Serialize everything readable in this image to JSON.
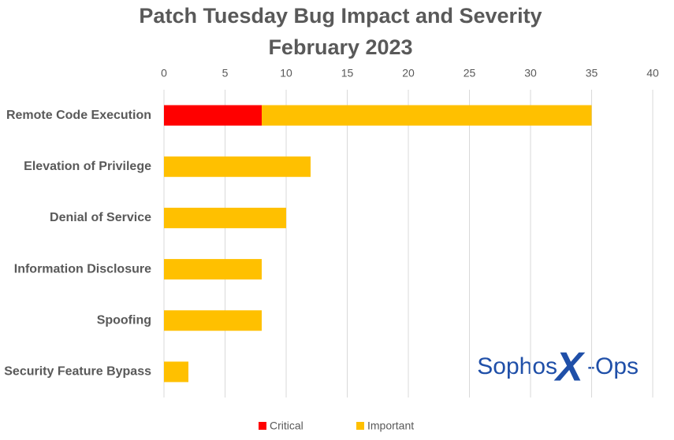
{
  "chart_data": {
    "type": "stacked-barh",
    "title": "Patch Tuesday Bug Impact and Severity",
    "subtitle": "February 2023",
    "categories": [
      "Remote Code Execution",
      "Elevation of Privilege",
      "Denial of Service",
      "Information Disclosure",
      "Spoofing",
      "Security Feature Bypass"
    ],
    "series": [
      {
        "name": "Critical",
        "color": "#ff0000",
        "values": [
          8,
          0,
          0,
          0,
          0,
          0
        ]
      },
      {
        "name": "Important",
        "color": "#ffc000",
        "values": [
          27,
          12,
          10,
          8,
          8,
          2
        ]
      }
    ],
    "xlim": [
      0,
      40
    ],
    "xticks": [
      0,
      5,
      10,
      15,
      20,
      25,
      30,
      35,
      40
    ],
    "grid": true,
    "legend": "bottom",
    "annotations": [
      "Sophos",
      "X",
      "-Ops"
    ]
  }
}
